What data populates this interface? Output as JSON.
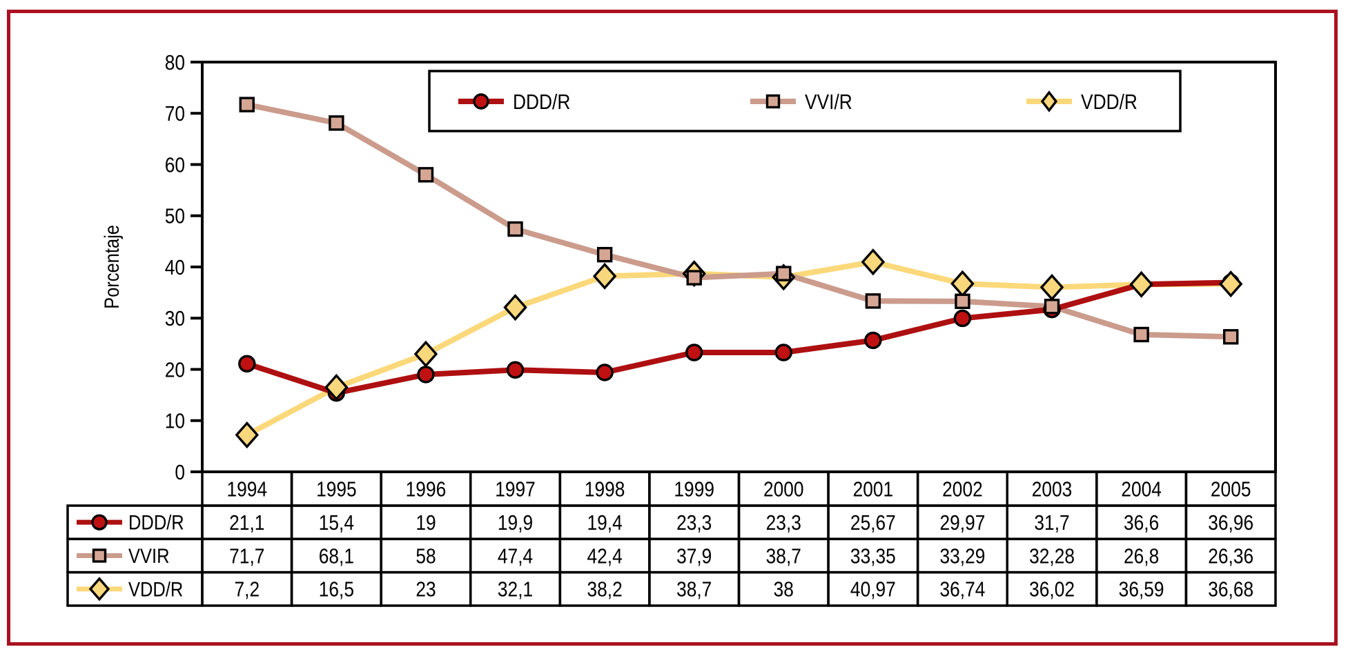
{
  "colors": {
    "frame": "#aa1120",
    "axis": "#000000",
    "background": "#ffffff",
    "ddd_line": "#ae0f10",
    "ddd_marker": "#c01112",
    "vvi_line": "#cb9b8c",
    "vvi_marker": "#d6a694",
    "vdd_line": "#fbd87a",
    "vdd_marker": "#f8d77d"
  },
  "chart_data": {
    "type": "line",
    "title": "",
    "ylabel": "Porcentaje",
    "xlabel": "",
    "ylim": [
      0,
      80
    ],
    "ytick_step": 10,
    "yticks": [
      0,
      10,
      20,
      30,
      40,
      50,
      60,
      70,
      80
    ],
    "grid": false,
    "legend_position": "top-inside",
    "x": [
      1994,
      1995,
      1996,
      1997,
      1998,
      1999,
      2000,
      2001,
      2002,
      2003,
      2004,
      2005
    ],
    "xticklabels": [
      "1994",
      "1995",
      "1996",
      "1997",
      "1998",
      "1999",
      "2000",
      "2001",
      "2002",
      "2003",
      "2004",
      "2005"
    ],
    "series": [
      {
        "key": "DDD",
        "name": "DDD/R",
        "marker": "circle",
        "line_color": "#ae0f10",
        "marker_color": "#c01112",
        "values": [
          21.1,
          15.4,
          19,
          19.9,
          19.4,
          23.3,
          23.3,
          25.67,
          29.97,
          31.7,
          36.6,
          36.96
        ]
      },
      {
        "key": "VVI",
        "name": "VVI/R",
        "marker": "square",
        "line_color": "#cb9b8c",
        "marker_color": "#d6a694",
        "values": [
          71.7,
          68.1,
          58,
          47.4,
          42.4,
          37.9,
          38.7,
          33.35,
          33.29,
          32.28,
          26.8,
          26.36
        ]
      },
      {
        "key": "VDD",
        "name": "VDD/R",
        "marker": "diamond",
        "line_color": "#fbd87a",
        "marker_color": "#f8d77d",
        "values": [
          7.2,
          16.5,
          23,
          32.1,
          38.2,
          38.7,
          38,
          40.97,
          36.74,
          36.02,
          36.59,
          36.68
        ]
      }
    ],
    "draw_order": {
      "lines": [
        "VDD",
        "VVI",
        "DDD"
      ],
      "markers": [
        "DDD",
        "VDD",
        "VVI"
      ]
    }
  },
  "legend": {
    "items": [
      {
        "key": "DDD",
        "label": "DDD/R"
      },
      {
        "key": "VVI",
        "label": "VVI/R"
      },
      {
        "key": "VDD",
        "label": "VDD/R"
      }
    ]
  },
  "table": {
    "year_header": [
      "1994",
      "1995",
      "1996",
      "1997",
      "1998",
      "1999",
      "2000",
      "2001",
      "2002",
      "2003",
      "2004",
      "2005"
    ],
    "rows": [
      {
        "key": "DDD",
        "label": "DDD/R",
        "values": [
          "21,1",
          "15,4",
          "19",
          "19,9",
          "19,4",
          "23,3",
          "23,3",
          "25,67",
          "29,97",
          "31,7",
          "36,6",
          "36,96"
        ]
      },
      {
        "key": "VVI",
        "label": "VVIR",
        "values": [
          "71,7",
          "68,1",
          "58",
          "47,4",
          "42,4",
          "37,9",
          "38,7",
          "33,35",
          "33,29",
          "32,28",
          "26,8",
          "26,36"
        ]
      },
      {
        "key": "VDD",
        "label": "VDD/R",
        "values": [
          "7,2",
          "16,5",
          "23",
          "32,1",
          "38,2",
          "38,7",
          "38",
          "40,97",
          "36,74",
          "36,02",
          "36,59",
          "36,68"
        ]
      }
    ]
  }
}
